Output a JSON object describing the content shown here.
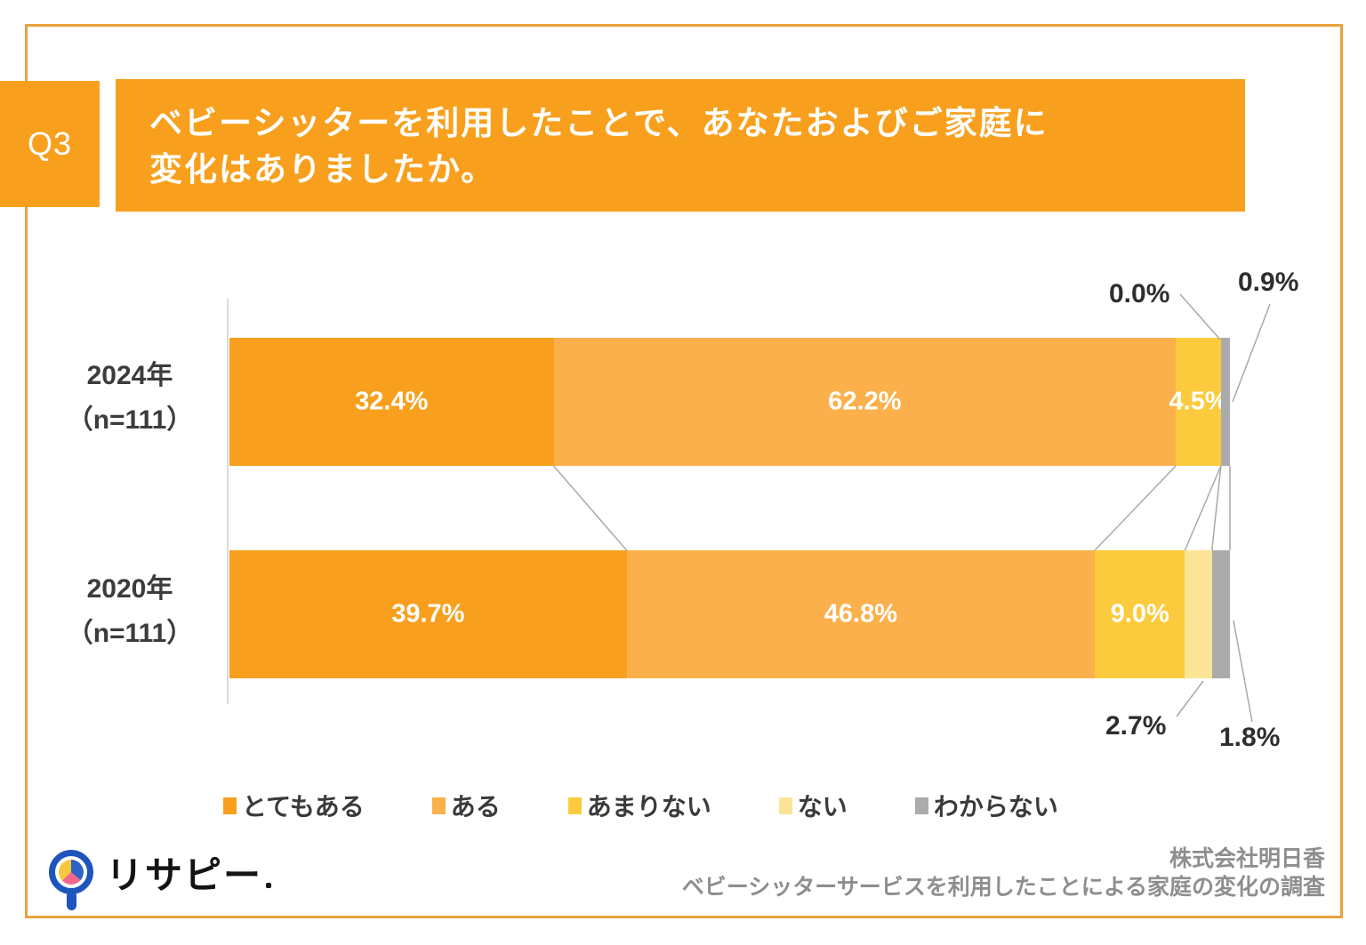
{
  "header": {
    "q_label": "Q3",
    "title_line1": "ベビーシッターを利用したことで、あなたおよびご家庭に",
    "title_line2": "変化はありましたか。"
  },
  "chart_data": {
    "type": "bar",
    "orientation": "horizontal",
    "stacked": true,
    "value_unit": "%",
    "xlim": [
      0,
      100
    ],
    "legend_position": "bottom",
    "categories": [
      "2024年（n=111）",
      "2020年（n=111）"
    ],
    "series": [
      {
        "name": "とてもある",
        "color": "#F8A01E",
        "values": [
          32.4,
          39.7
        ]
      },
      {
        "name": "ある",
        "color": "#FBB04B",
        "values": [
          62.2,
          46.8
        ]
      },
      {
        "name": "あまりない",
        "color": "#FBCB3D",
        "values": [
          4.5,
          9.0
        ]
      },
      {
        "name": "ない",
        "color": "#FBE495",
        "values": [
          0.0,
          2.7
        ]
      },
      {
        "name": "わからない",
        "color": "#ABABAB",
        "values": [
          0.9,
          1.8
        ]
      }
    ]
  },
  "row_labels": [
    {
      "year": "2024年",
      "n": "（n=111）"
    },
    {
      "year": "2020年",
      "n": "（n=111）"
    }
  ],
  "callouts": {
    "top_nai": "0.0%",
    "top_wakaranai": "0.9%",
    "bottom_nai": "2.7%",
    "bottom_wakaranai": "1.8%"
  },
  "footer": {
    "logo_text": "リサピー",
    "company": "株式会社明日香",
    "survey_title": "ベビーシッターサービスを利用したことによる家庭の変化の調査"
  }
}
